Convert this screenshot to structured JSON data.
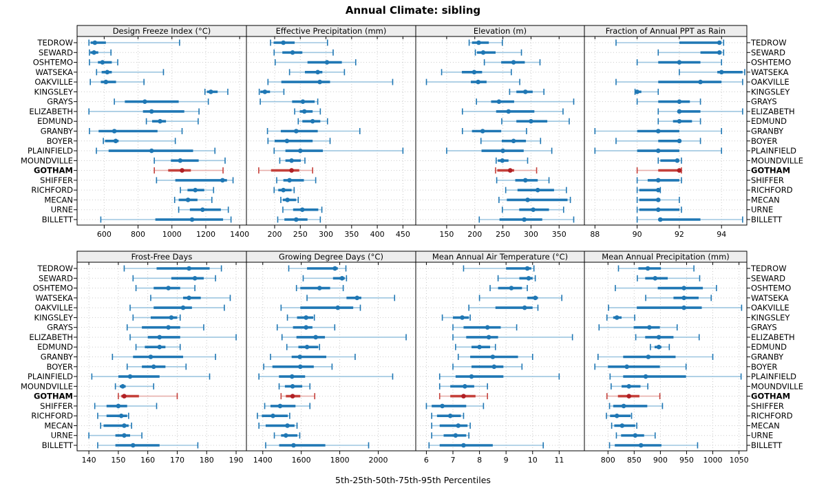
{
  "title": "Annual Climate: sibling",
  "caption": "5th-25th-50th-75th-95th Percentiles",
  "sites": [
    "TEDROW",
    "SEWARD",
    "OSHTEMO",
    "WATSEKA",
    "OAKVILLE",
    "KINGSLEY",
    "GRAYS",
    "ELIZABETH",
    "EDMUND",
    "GRANBY",
    "BOYER",
    "PLAINFIELD",
    "MOUNDVILLE",
    "GOTHAM",
    "SHIFFER",
    "RICHFORD",
    "MECAN",
    "URNE",
    "BILLETT"
  ],
  "highlight_site": "GOTHAM",
  "colors": {
    "blue": "#1f77b4",
    "blue_light": "#9dc6e0",
    "red": "#c5403a",
    "red_light": "#e7afab",
    "red_dot": "#b01f24",
    "grid": "#c8c8c8",
    "row_guide": "#cccccc",
    "header_bg": "#ededed",
    "border": "#000000",
    "text": "#000000"
  },
  "chart_data": {
    "type": "dotplot-whisker-trellis",
    "percentiles": [
      5,
      25,
      50,
      75,
      95
    ],
    "legend_note": "each row: thin line 5th-95th, thick bar 25th-75th, dot 50th percentile",
    "grid": "dotted",
    "panels": [
      {
        "title": "Design Freeze Index (°C)",
        "xlim": [
          440,
          1440
        ],
        "ticks": [
          600,
          800,
          1000,
          1200,
          1400
        ],
        "values": [
          [
            510,
            520,
            545,
            610,
            1045
          ],
          [
            513,
            518,
            540,
            565,
            640
          ],
          [
            513,
            563,
            590,
            645,
            680
          ],
          [
            555,
            585,
            618,
            645,
            950
          ],
          [
            518,
            580,
            610,
            670,
            835
          ],
          [
            1195,
            1207,
            1230,
            1270,
            1330
          ],
          [
            660,
            722,
            840,
            1040,
            1215
          ],
          [
            510,
            829,
            880,
            1073,
            1160
          ],
          [
            849,
            883,
            930,
            965,
            1155
          ],
          [
            513,
            567,
            660,
            915,
            1060
          ],
          [
            595,
            605,
            668,
            685,
            1020
          ],
          [
            554,
            626,
            880,
            1125,
            1254
          ],
          [
            896,
            994,
            1049,
            1158,
            1314
          ],
          [
            896,
            978,
            1060,
            1112,
            1302
          ],
          [
            909,
            1020,
            1299,
            1325,
            1361
          ],
          [
            1050,
            1092,
            1138,
            1191,
            1246
          ],
          [
            1016,
            1040,
            1095,
            1151,
            1236
          ],
          [
            1040,
            1106,
            1181,
            1289,
            1333
          ],
          [
            580,
            902,
            1119,
            1302,
            1349
          ]
        ]
      },
      {
        "title": "Effective Precipitation (mm)",
        "xlim": [
          145,
          475
        ],
        "ticks": [
          200,
          250,
          300,
          350,
          400,
          450
        ],
        "values": [
          [
            192,
            198,
            217,
            239,
            303
          ],
          [
            199,
            215,
            235,
            254,
            314
          ],
          [
            201,
            264,
            302,
            331,
            358
          ],
          [
            229,
            259,
            284,
            293,
            336
          ],
          [
            187,
            213,
            288,
            308,
            430
          ],
          [
            170,
            172,
            181,
            191,
            218
          ],
          [
            172,
            234,
            255,
            278,
            284
          ],
          [
            239,
            249,
            258,
            274,
            289
          ],
          [
            246,
            254,
            274,
            289,
            303
          ],
          [
            186,
            212,
            242,
            284,
            366
          ],
          [
            187,
            200,
            224,
            274,
            308
          ],
          [
            199,
            221,
            250,
            294,
            450
          ],
          [
            210,
            221,
            233,
            251,
            259
          ],
          [
            169,
            193,
            233,
            248,
            274
          ],
          [
            204,
            217,
            229,
            257,
            280
          ],
          [
            199,
            207,
            217,
            233,
            238
          ],
          [
            212,
            216,
            225,
            242,
            246
          ],
          [
            216,
            236,
            254,
            285,
            292
          ],
          [
            206,
            219,
            242,
            264,
            289
          ]
        ]
      },
      {
        "title": "Elevation (m)",
        "xlim": [
          95,
          395
        ],
        "ticks": [
          150,
          200,
          250,
          300,
          350
        ],
        "values": [
          [
            190,
            195,
            207,
            225,
            249
          ],
          [
            201,
            204,
            215,
            237,
            283
          ],
          [
            217,
            247,
            269,
            289,
            316
          ],
          [
            141,
            177,
            199,
            213,
            265
          ],
          [
            114,
            193,
            206,
            221,
            280
          ],
          [
            262,
            274,
            290,
            303,
            323
          ],
          [
            203,
            229,
            243,
            270,
            376
          ],
          [
            178,
            238,
            260,
            306,
            357
          ],
          [
            248,
            274,
            300,
            329,
            368
          ],
          [
            178,
            195,
            214,
            247,
            292
          ],
          [
            211,
            248,
            269,
            291,
            317
          ],
          [
            150,
            212,
            250,
            287,
            337
          ],
          [
            238,
            241,
            249,
            260,
            294
          ],
          [
            237,
            240,
            263,
            270,
            310
          ],
          [
            239,
            272,
            290,
            312,
            332
          ],
          [
            255,
            276,
            312,
            341,
            363
          ],
          [
            243,
            257,
            294,
            365,
            370
          ],
          [
            249,
            279,
            304,
            332,
            358
          ],
          [
            208,
            244,
            288,
            320,
            376
          ]
        ]
      },
      {
        "title": "Fraction of Annual PPT as Rain",
        "xlim": [
          87.5,
          95.2
        ],
        "ticks": [
          88,
          90,
          92,
          94
        ],
        "values": [
          [
            89,
            92,
            93.9,
            94,
            94.1
          ],
          [
            91,
            93,
            93.9,
            94,
            94.1
          ],
          [
            90,
            91,
            92,
            93,
            94
          ],
          [
            92,
            93.8,
            94,
            95,
            95.1
          ],
          [
            89,
            91,
            93,
            94,
            95
          ],
          [
            89.9,
            90,
            90,
            90.2,
            91
          ],
          [
            90,
            91,
            92,
            92.5,
            93
          ],
          [
            91,
            92,
            92,
            93,
            95
          ],
          [
            91,
            91.7,
            92,
            92.6,
            93
          ],
          [
            88,
            90,
            91,
            92,
            94
          ],
          [
            89,
            91,
            92,
            92.1,
            93
          ],
          [
            88,
            90,
            91,
            92,
            94
          ],
          [
            91,
            91.1,
            91.9,
            92,
            92.1
          ],
          [
            90,
            91,
            92,
            92,
            92.1
          ],
          [
            90,
            90.5,
            91,
            92,
            92.1
          ],
          [
            90,
            90.1,
            91,
            91,
            91.1
          ],
          [
            90,
            90.1,
            91,
            91.1,
            92
          ],
          [
            90,
            90.1,
            91,
            92,
            92.1
          ],
          [
            90,
            91,
            91.1,
            93,
            95
          ]
        ]
      },
      {
        "title": "Frost-Free Days",
        "xlim": [
          136,
          193.5
        ],
        "ticks": [
          140,
          150,
          160,
          170,
          180,
          190
        ],
        "values": [
          [
            152,
            163,
            174,
            181,
            185
          ],
          [
            155,
            168,
            176,
            179,
            183
          ],
          [
            156,
            162,
            167,
            171,
            176
          ],
          [
            161,
            172,
            174,
            178,
            188
          ],
          [
            154,
            162,
            172,
            175,
            186
          ],
          [
            155,
            161,
            168,
            170,
            171
          ],
          [
            153,
            158,
            167,
            171,
            179
          ],
          [
            154,
            160,
            164,
            171,
            190
          ],
          [
            156,
            159,
            164,
            166,
            171
          ],
          [
            148,
            155,
            161,
            172,
            183
          ],
          [
            153,
            158,
            162,
            166,
            173
          ],
          [
            141,
            150,
            154,
            164,
            181
          ],
          [
            149,
            150.5,
            151.5,
            152.5,
            162
          ],
          [
            150,
            151,
            152,
            157,
            170
          ],
          [
            142,
            146,
            150,
            153,
            163
          ],
          [
            143,
            146,
            151,
            153,
            153.5
          ],
          [
            144,
            145,
            152,
            153.5,
            154.5
          ],
          [
            140,
            149,
            152,
            154,
            158
          ],
          [
            143,
            149,
            155,
            164,
            177
          ]
        ]
      },
      {
        "title": "Growing Degree Days (°C)",
        "xlim": [
          1315,
          2195
        ],
        "ticks": [
          1400,
          1600,
          1800,
          2000
        ],
        "values": [
          [
            1535,
            1630,
            1775,
            1790,
            1832
          ],
          [
            1610,
            1765,
            1812,
            1826,
            1835
          ],
          [
            1575,
            1595,
            1695,
            1750,
            1818
          ],
          [
            1630,
            1835,
            1890,
            1912,
            2085
          ],
          [
            1495,
            1595,
            1790,
            1870,
            1907
          ],
          [
            1528,
            1578,
            1625,
            1662,
            1668
          ],
          [
            1475,
            1557,
            1625,
            1658,
            1774
          ],
          [
            1500,
            1575,
            1675,
            1723,
            2145
          ],
          [
            1525,
            1585,
            1630,
            1688,
            1695
          ],
          [
            1440,
            1550,
            1593,
            1730,
            1880
          ],
          [
            1405,
            1450,
            1595,
            1665,
            1760
          ],
          [
            1380,
            1484,
            1552,
            1620,
            2075
          ],
          [
            1485,
            1515,
            1555,
            1605,
            1645
          ],
          [
            1495,
            1520,
            1555,
            1595,
            1670
          ],
          [
            1410,
            1440,
            1490,
            1570,
            1645
          ],
          [
            1372,
            1395,
            1453,
            1530,
            1540
          ],
          [
            1380,
            1415,
            1528,
            1565,
            1578
          ],
          [
            1460,
            1495,
            1520,
            1580,
            1592
          ],
          [
            1415,
            1485,
            1560,
            1725,
            1950
          ]
        ]
      },
      {
        "title": "Mean Annual Air Temperature (°C)",
        "xlim": [
          5.6,
          11.95
        ],
        "ticks": [
          6,
          7,
          8,
          9,
          10,
          11
        ],
        "values": [
          [
            7.4,
            9.0,
            9.8,
            9.95,
            10.05
          ],
          [
            8.7,
            9.5,
            9.85,
            10.0,
            10.1
          ],
          [
            8.4,
            8.7,
            9.2,
            9.6,
            9.8
          ],
          [
            8.0,
            9.8,
            10.1,
            10.2,
            11.1
          ],
          [
            7.6,
            8.6,
            9.7,
            10.0,
            10.2
          ],
          [
            6.6,
            7.0,
            7.35,
            7.6,
            7.65
          ],
          [
            7.0,
            7.4,
            8.3,
            8.8,
            9.4
          ],
          [
            7.0,
            7.5,
            8.35,
            8.7,
            11.5
          ],
          [
            7.1,
            7.7,
            8.0,
            8.4,
            8.6
          ],
          [
            7.2,
            7.65,
            8.5,
            9.45,
            10.0
          ],
          [
            7.0,
            7.7,
            8.55,
            8.9,
            9.6
          ],
          [
            6.5,
            7.1,
            7.7,
            8.9,
            11.0
          ],
          [
            6.5,
            6.9,
            7.45,
            7.8,
            8.3
          ],
          [
            6.5,
            6.9,
            7.4,
            7.85,
            8.3
          ],
          [
            6.0,
            6.2,
            6.6,
            7.5,
            8.15
          ],
          [
            6.2,
            6.4,
            6.9,
            7.3,
            7.4
          ],
          [
            6.2,
            6.5,
            7.2,
            7.55,
            7.65
          ],
          [
            6.2,
            6.65,
            7.1,
            7.5,
            7.6
          ],
          [
            6.1,
            6.5,
            7.4,
            8.5,
            10.4
          ]
        ]
      },
      {
        "title": "Mean Annual Precipitation (mm)",
        "xlim": [
          755,
          1065
        ],
        "ticks": [
          800,
          850,
          900,
          950,
          1000,
          1050
        ],
        "values": [
          [
            820,
            858,
            876,
            901,
            964
          ],
          [
            856,
            871,
            890,
            914,
            975
          ],
          [
            814,
            895,
            945,
            981,
            1007
          ],
          [
            872,
            925,
            945,
            973,
            997
          ],
          [
            801,
            855,
            945,
            979,
            1055
          ],
          [
            798,
            810,
            817,
            826,
            851
          ],
          [
            783,
            849,
            879,
            899,
            932
          ],
          [
            853,
            871,
            897,
            925,
            974
          ],
          [
            881,
            889,
            897,
            902,
            917
          ],
          [
            781,
            829,
            877,
            929,
            1000
          ],
          [
            775,
            800,
            836,
            899,
            949
          ],
          [
            804,
            829,
            872,
            949,
            1054
          ],
          [
            806,
            826,
            840,
            862,
            876
          ],
          [
            798,
            819,
            840,
            860,
            899
          ],
          [
            803,
            810,
            830,
            875,
            904
          ],
          [
            797,
            804,
            817,
            843,
            845
          ],
          [
            807,
            812,
            827,
            852,
            855
          ],
          [
            816,
            825,
            852,
            869,
            890
          ],
          [
            803,
            813,
            863,
            902,
            971
          ]
        ]
      }
    ]
  }
}
